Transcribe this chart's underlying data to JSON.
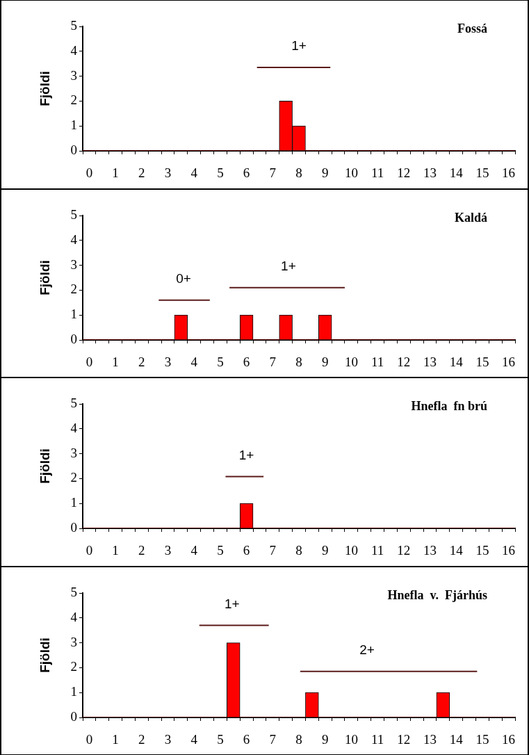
{
  "chart_data": [
    {
      "type": "histogram",
      "title": "Fossá",
      "ylabel": "Fjöldi",
      "color": "#ff0000",
      "bins": [
        -0.25,
        0.25,
        0.75,
        1.25,
        1.75,
        2.25,
        2.75,
        3.25,
        3.75,
        4.25,
        4.75,
        5.25,
        5.75,
        6.25,
        6.75,
        7.25,
        7.75,
        8.25,
        8.75,
        9.25,
        9.75,
        10.25,
        10.75,
        11.25,
        11.75,
        12.25,
        12.75,
        13.25,
        13.75,
        14.25,
        14.75,
        15.25,
        15.75,
        16.25
      ],
      "values": [
        0,
        0,
        0,
        0,
        0,
        0,
        0,
        0,
        0,
        0,
        0,
        0,
        0,
        0,
        0,
        2,
        1,
        0,
        0,
        0,
        0,
        0,
        0,
        0,
        0,
        0,
        0,
        0,
        0,
        0,
        0,
        0,
        0
      ],
      "series": [
        {
          "type": "line",
          "x": [
            6.4,
            9.2
          ],
          "values": [
            3.35,
            3.35
          ],
          "color": "#5a1a1a"
        }
      ],
      "annotations": [
        {
          "text": "1+",
          "x": 8,
          "y": 3.35
        }
      ],
      "xlim": [
        -0.25,
        16.25
      ],
      "xticks": [
        {
          "value": -0.25,
          "label": null
        },
        0,
        {
          "value": 0.25,
          "label": null
        },
        {
          "value": 0.75,
          "label": null
        },
        1,
        {
          "value": 1.25,
          "label": null
        },
        {
          "value": 1.75,
          "label": null
        },
        2,
        {
          "value": 2.25,
          "label": null
        },
        {
          "value": 2.75,
          "label": null
        },
        3,
        {
          "value": 3.25,
          "label": null
        },
        {
          "value": 3.75,
          "label": null
        },
        4,
        {
          "value": 4.25,
          "label": null
        },
        {
          "value": 4.75,
          "label": null
        },
        5,
        {
          "value": 5.25,
          "label": null
        },
        {
          "value": 5.75,
          "label": null
        },
        6,
        {
          "value": 6.25,
          "label": null
        },
        {
          "value": 6.75,
          "label": null
        },
        7,
        {
          "value": 7.25,
          "label": null
        },
        {
          "value": 7.75,
          "label": null
        },
        8,
        {
          "value": 8.25,
          "label": null
        },
        {
          "value": 8.75,
          "label": null
        },
        9,
        {
          "value": 9.25,
          "label": null
        },
        {
          "value": 9.75,
          "label": null
        },
        10,
        {
          "value": 10.25,
          "label": null
        },
        {
          "value": 10.75,
          "label": null
        },
        11,
        {
          "value": 11.25,
          "label": null
        },
        {
          "value": 11.75,
          "label": null
        },
        12,
        {
          "value": 12.25,
          "label": null
        },
        {
          "value": 12.75,
          "label": null
        },
        13,
        {
          "value": 13.25,
          "label": null
        },
        {
          "value": 13.75,
          "label": null
        },
        14,
        {
          "value": 14.25,
          "label": null
        },
        {
          "value": 14.75,
          "label": null
        },
        15,
        {
          "value": 15.25,
          "label": null
        },
        {
          "value": 15.75,
          "label": null
        },
        16,
        {
          "value": 16.25,
          "label": null
        }
      ],
      "ylim": [
        0,
        5
      ],
      "yticks": [
        0,
        1,
        2,
        3,
        4,
        5
      ],
      "grid": false,
      "legend": false
    },
    {
      "type": "histogram",
      "title": "Kaldá",
      "ylabel": "Fjöldi",
      "color": "#ff0000",
      "bins": [
        -0.25,
        0.25,
        0.75,
        1.25,
        1.75,
        2.25,
        2.75,
        3.25,
        3.75,
        4.25,
        4.75,
        5.25,
        5.75,
        6.25,
        6.75,
        7.25,
        7.75,
        8.25,
        8.75,
        9.25,
        9.75,
        10.25,
        10.75,
        11.25,
        11.75,
        12.25,
        12.75,
        13.25,
        13.75,
        14.25,
        14.75,
        15.25,
        15.75,
        16.25
      ],
      "values": [
        0,
        0,
        0,
        0,
        0,
        0,
        0,
        1,
        0,
        0,
        0,
        0,
        1,
        0,
        0,
        1,
        0,
        0,
        1,
        0,
        0,
        0,
        0,
        0,
        0,
        0,
        0,
        0,
        0,
        0,
        0,
        0,
        0
      ],
      "series": [
        {
          "type": "line",
          "x": [
            2.65,
            4.6
          ],
          "values": [
            1.6,
            1.6
          ],
          "color": "#5a1a1a"
        },
        {
          "type": "line",
          "x": [
            5.35,
            9.75
          ],
          "values": [
            2.1,
            2.1
          ],
          "color": "#5a1a1a"
        }
      ],
      "annotations": [
        {
          "text": "0+",
          "x": 3.6,
          "y": 1.6
        },
        {
          "text": "1+",
          "x": 7.6,
          "y": 2.1
        }
      ],
      "xlim": [
        -0.25,
        16.25
      ],
      "xticks": [
        {
          "value": -0.25,
          "label": null
        },
        0,
        {
          "value": 0.25,
          "label": null
        },
        {
          "value": 0.75,
          "label": null
        },
        1,
        {
          "value": 1.25,
          "label": null
        },
        {
          "value": 1.75,
          "label": null
        },
        2,
        {
          "value": 2.25,
          "label": null
        },
        {
          "value": 2.75,
          "label": null
        },
        3,
        {
          "value": 3.25,
          "label": null
        },
        {
          "value": 3.75,
          "label": null
        },
        4,
        {
          "value": 4.25,
          "label": null
        },
        {
          "value": 4.75,
          "label": null
        },
        5,
        {
          "value": 5.25,
          "label": null
        },
        {
          "value": 5.75,
          "label": null
        },
        6,
        {
          "value": 6.25,
          "label": null
        },
        {
          "value": 6.75,
          "label": null
        },
        7,
        {
          "value": 7.25,
          "label": null
        },
        {
          "value": 7.75,
          "label": null
        },
        8,
        {
          "value": 8.25,
          "label": null
        },
        {
          "value": 8.75,
          "label": null
        },
        9,
        {
          "value": 9.25,
          "label": null
        },
        {
          "value": 9.75,
          "label": null
        },
        10,
        {
          "value": 10.25,
          "label": null
        },
        {
          "value": 10.75,
          "label": null
        },
        11,
        {
          "value": 11.25,
          "label": null
        },
        {
          "value": 11.75,
          "label": null
        },
        12,
        {
          "value": 12.25,
          "label": null
        },
        {
          "value": 12.75,
          "label": null
        },
        13,
        {
          "value": 13.25,
          "label": null
        },
        {
          "value": 13.75,
          "label": null
        },
        14,
        {
          "value": 14.25,
          "label": null
        },
        {
          "value": 14.75,
          "label": null
        },
        15,
        {
          "value": 15.25,
          "label": null
        },
        {
          "value": 15.75,
          "label": null
        },
        16,
        {
          "value": 16.25,
          "label": null
        }
      ],
      "ylim": [
        0,
        5
      ],
      "yticks": [
        0,
        1,
        2,
        3,
        4,
        5
      ],
      "grid": false,
      "legend": false
    },
    {
      "type": "histogram",
      "title": "Hnefla  fn brú",
      "ylabel": "Fjöldi",
      "color": "#ff0000",
      "bins": [
        -0.25,
        0.25,
        0.75,
        1.25,
        1.75,
        2.25,
        2.75,
        3.25,
        3.75,
        4.25,
        4.75,
        5.25,
        5.75,
        6.25,
        6.75,
        7.25,
        7.75,
        8.25,
        8.75,
        9.25,
        9.75,
        10.25,
        10.75,
        11.25,
        11.75,
        12.25,
        12.75,
        13.25,
        13.75,
        14.25,
        14.75,
        15.25,
        15.75,
        16.25
      ],
      "values": [
        0,
        0,
        0,
        0,
        0,
        0,
        0,
        0,
        0,
        0,
        0,
        0,
        1,
        0,
        0,
        0,
        0,
        0,
        0,
        0,
        0,
        0,
        0,
        0,
        0,
        0,
        0,
        0,
        0,
        0,
        0,
        0,
        0
      ],
      "series": [
        {
          "type": "line",
          "x": [
            5.2,
            6.65
          ],
          "values": [
            2.08,
            2.08
          ],
          "color": "#5a1a1a"
        }
      ],
      "annotations": [
        {
          "text": "1+",
          "x": 6,
          "y": 2.08
        }
      ],
      "xlim": [
        -0.25,
        16.25
      ],
      "xticks": [
        {
          "value": -0.25,
          "label": null
        },
        0,
        {
          "value": 0.25,
          "label": null
        },
        {
          "value": 0.75,
          "label": null
        },
        1,
        {
          "value": 1.25,
          "label": null
        },
        {
          "value": 1.75,
          "label": null
        },
        2,
        {
          "value": 2.25,
          "label": null
        },
        {
          "value": 2.75,
          "label": null
        },
        3,
        {
          "value": 3.25,
          "label": null
        },
        {
          "value": 3.75,
          "label": null
        },
        4,
        {
          "value": 4.25,
          "label": null
        },
        {
          "value": 4.75,
          "label": null
        },
        5,
        {
          "value": 5.25,
          "label": null
        },
        {
          "value": 5.75,
          "label": null
        },
        6,
        {
          "value": 6.25,
          "label": null
        },
        {
          "value": 6.75,
          "label": null
        },
        7,
        {
          "value": 7.25,
          "label": null
        },
        {
          "value": 7.75,
          "label": null
        },
        8,
        {
          "value": 8.25,
          "label": null
        },
        {
          "value": 8.75,
          "label": null
        },
        9,
        {
          "value": 9.25,
          "label": null
        },
        {
          "value": 9.75,
          "label": null
        },
        10,
        {
          "value": 10.25,
          "label": null
        },
        {
          "value": 10.75,
          "label": null
        },
        11,
        {
          "value": 11.25,
          "label": null
        },
        {
          "value": 11.75,
          "label": null
        },
        12,
        {
          "value": 12.25,
          "label": null
        },
        {
          "value": 12.75,
          "label": null
        },
        13,
        {
          "value": 13.25,
          "label": null
        },
        {
          "value": 13.75,
          "label": null
        },
        14,
        {
          "value": 14.25,
          "label": null
        },
        {
          "value": 14.75,
          "label": null
        },
        15,
        {
          "value": 15.25,
          "label": null
        },
        {
          "value": 15.75,
          "label": null
        },
        16,
        {
          "value": 16.25,
          "label": null
        }
      ],
      "ylim": [
        0,
        5
      ],
      "yticks": [
        0,
        1,
        2,
        3,
        4,
        5
      ],
      "grid": false,
      "legend": false
    },
    {
      "type": "histogram",
      "title": "Hnefla  v.  Fjárhús",
      "ylabel": "Fjöldi",
      "color": "#ff0000",
      "bins": [
        -0.25,
        0.25,
        0.75,
        1.25,
        1.75,
        2.25,
        2.75,
        3.25,
        3.75,
        4.25,
        4.75,
        5.25,
        5.75,
        6.25,
        6.75,
        7.25,
        7.75,
        8.25,
        8.75,
        9.25,
        9.75,
        10.25,
        10.75,
        11.25,
        11.75,
        12.25,
        12.75,
        13.25,
        13.75,
        14.25,
        14.75,
        15.25,
        15.75,
        16.25
      ],
      "values": [
        0,
        0,
        0,
        0,
        0,
        0,
        0,
        0,
        0,
        0,
        0,
        3,
        0,
        0,
        0,
        0,
        0,
        1,
        0,
        0,
        0,
        0,
        0,
        0,
        0,
        0,
        0,
        1,
        0,
        0,
        0,
        0,
        0
      ],
      "series": [
        {
          "type": "line",
          "x": [
            4.2,
            6.85
          ],
          "values": [
            3.7,
            3.7
          ],
          "color": "#5a1a1a"
        },
        {
          "type": "line",
          "x": [
            8.05,
            14.8
          ],
          "values": [
            1.85,
            1.85
          ],
          "color": "#5a1a1a"
        }
      ],
      "annotations": [
        {
          "text": "1+",
          "x": 5.45,
          "y": 3.7
        },
        {
          "text": "2+",
          "x": 10.6,
          "y": 1.85
        }
      ],
      "xlim": [
        -0.25,
        16.25
      ],
      "xticks": [
        {
          "value": -0.25,
          "label": null
        },
        0,
        {
          "value": 0.25,
          "label": null
        },
        {
          "value": 0.75,
          "label": null
        },
        1,
        {
          "value": 1.25,
          "label": null
        },
        {
          "value": 1.75,
          "label": null
        },
        2,
        {
          "value": 2.25,
          "label": null
        },
        {
          "value": 2.75,
          "label": null
        },
        3,
        {
          "value": 3.25,
          "label": null
        },
        {
          "value": 3.75,
          "label": null
        },
        4,
        {
          "value": 4.25,
          "label": null
        },
        {
          "value": 4.75,
          "label": null
        },
        5,
        {
          "value": 5.25,
          "label": null
        },
        {
          "value": 5.75,
          "label": null
        },
        6,
        {
          "value": 6.25,
          "label": null
        },
        {
          "value": 6.75,
          "label": null
        },
        7,
        {
          "value": 7.25,
          "label": null
        },
        {
          "value": 7.75,
          "label": null
        },
        8,
        {
          "value": 8.25,
          "label": null
        },
        {
          "value": 8.75,
          "label": null
        },
        9,
        {
          "value": 9.25,
          "label": null
        },
        {
          "value": 9.75,
          "label": null
        },
        10,
        {
          "value": 10.25,
          "label": null
        },
        {
          "value": 10.75,
          "label": null
        },
        11,
        {
          "value": 11.25,
          "label": null
        },
        {
          "value": 11.75,
          "label": null
        },
        12,
        {
          "value": 12.25,
          "label": null
        },
        {
          "value": 12.75,
          "label": null
        },
        13,
        {
          "value": 13.25,
          "label": null
        },
        {
          "value": 13.75,
          "label": null
        },
        14,
        {
          "value": 14.25,
          "label": null
        },
        {
          "value": 14.75,
          "label": null
        },
        15,
        {
          "value": 15.25,
          "label": null
        },
        {
          "value": 15.75,
          "label": null
        },
        16,
        {
          "value": 16.25,
          "label": null
        }
      ],
      "ylim": [
        0,
        5
      ],
      "yticks": [
        0,
        1,
        2,
        3,
        4,
        5
      ],
      "grid": false,
      "legend": false
    }
  ]
}
